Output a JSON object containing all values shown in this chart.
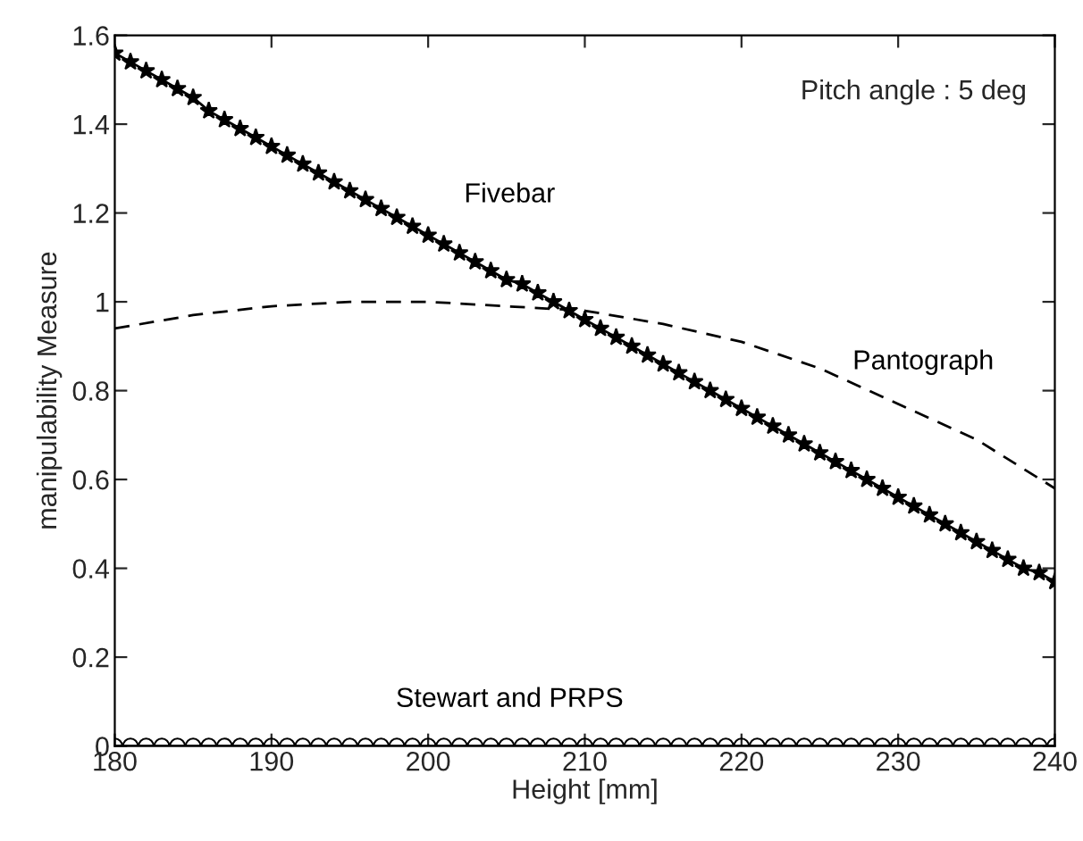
{
  "chart_data": {
    "type": "line",
    "xlabel": "Height [mm]",
    "ylabel": "manipulability Measure",
    "x": [
      180,
      181,
      182,
      183,
      184,
      185,
      186,
      187,
      188,
      189,
      190,
      191,
      192,
      193,
      194,
      195,
      196,
      197,
      198,
      199,
      200,
      201,
      202,
      203,
      204,
      205,
      206,
      207,
      208,
      209,
      210,
      211,
      212,
      213,
      214,
      215,
      216,
      217,
      218,
      219,
      220,
      221,
      222,
      223,
      224,
      225,
      226,
      227,
      228,
      229,
      230,
      231,
      232,
      233,
      234,
      235,
      236,
      237,
      238,
      239,
      240
    ],
    "series": [
      {
        "name": "Fivebar",
        "color": "#000000",
        "marker": "star",
        "line_style": "solid",
        "values": [
          1.56,
          1.54,
          1.52,
          1.5,
          1.48,
          1.46,
          1.43,
          1.41,
          1.39,
          1.37,
          1.35,
          1.33,
          1.31,
          1.29,
          1.27,
          1.25,
          1.23,
          1.21,
          1.19,
          1.17,
          1.15,
          1.13,
          1.11,
          1.09,
          1.07,
          1.05,
          1.04,
          1.02,
          1.0,
          0.98,
          0.96,
          0.94,
          0.92,
          0.9,
          0.88,
          0.86,
          0.84,
          0.82,
          0.8,
          0.78,
          0.76,
          0.74,
          0.72,
          0.7,
          0.68,
          0.66,
          0.64,
          0.62,
          0.6,
          0.58,
          0.56,
          0.54,
          0.52,
          0.5,
          0.48,
          0.46,
          0.44,
          0.42,
          0.4,
          0.39,
          0.37
        ]
      },
      {
        "name": "Pantograph",
        "color": "#000000",
        "marker": "none",
        "line_style": "dashed",
        "x": [
          180,
          185,
          190,
          195,
          200,
          205,
          210,
          215,
          220,
          225,
          230,
          235,
          240
        ],
        "values": [
          0.94,
          0.97,
          0.99,
          1.0,
          1.0,
          0.99,
          0.98,
          0.95,
          0.91,
          0.85,
          0.77,
          0.69,
          0.58
        ]
      },
      {
        "name": "Stewart and PRPS",
        "color": "#000000",
        "marker": "circle",
        "line_style": "solid",
        "values": [
          0,
          0,
          0,
          0,
          0,
          0,
          0,
          0,
          0,
          0,
          0,
          0,
          0,
          0,
          0,
          0,
          0,
          0,
          0,
          0,
          0,
          0,
          0,
          0,
          0,
          0,
          0,
          0,
          0,
          0,
          0,
          0,
          0,
          0,
          0,
          0,
          0,
          0,
          0,
          0,
          0,
          0,
          0,
          0,
          0,
          0,
          0,
          0,
          0,
          0,
          0,
          0,
          0,
          0,
          0,
          0,
          0,
          0,
          0,
          0,
          0
        ]
      }
    ],
    "annotations": [
      "Pitch angle : 5 deg"
    ],
    "xlim": [
      180,
      240
    ],
    "xticks": [
      180,
      190,
      200,
      210,
      220,
      230,
      240
    ],
    "ylim": [
      0,
      1.6
    ],
    "yticks": [
      0,
      0.2,
      0.4,
      0.6,
      0.8,
      1,
      1.2,
      1.4,
      1.6
    ],
    "grid": false,
    "legend": false
  }
}
